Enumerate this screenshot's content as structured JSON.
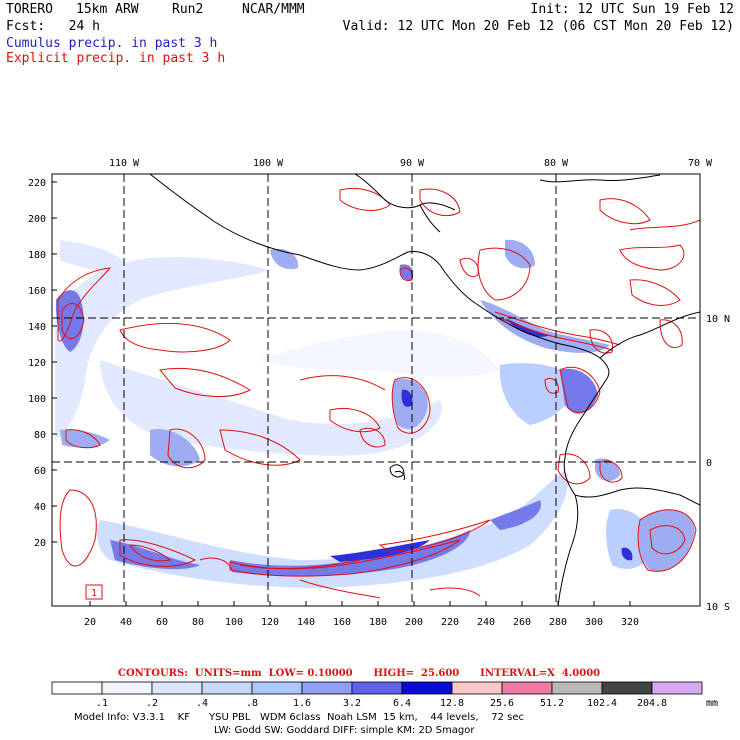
{
  "header": {
    "model": "TORERO",
    "resolution": "15km ARW",
    "run": "Run2",
    "center": "NCAR/MMM",
    "init": "Init: 12 UTC Sun 19 Feb 12",
    "fcst": "Fcst:   24 h",
    "valid": "Valid: 12 UTC Mon 20 Feb 12 (06 CST Mon 20 Feb 12)",
    "cumulus_title": "Cumulus precip. in past 3 h",
    "explicit_title": "Explicit precip. in past 3 h"
  },
  "map": {
    "lon_labels": [
      "110 W",
      "100 W",
      "90 W",
      "80 W",
      "70 W"
    ],
    "lat_labels": [
      "10 N",
      "0",
      "10 S"
    ],
    "y_ticks": [
      "220",
      "200",
      "180",
      "160",
      "140",
      "120",
      "100",
      "80",
      "60",
      "40",
      "20"
    ],
    "x_ticks": [
      "20",
      "40",
      "60",
      "80",
      "100",
      "120",
      "140",
      "160",
      "180",
      "200",
      "220",
      "240",
      "260",
      "280",
      "300",
      "320"
    ],
    "colors": {
      "cumulus": "#3d3df0",
      "explicit": "#e01010",
      "coast": "#000000"
    },
    "box_label": "1"
  },
  "legend": {
    "contours_line": "CONTOURS:  UNITS=mm  LOW= 0.10000      HIGH=  25.600      INTERVAL=X  4.0000",
    "unit": "mm",
    "thresholds": [
      ".1",
      ".2",
      ".4",
      ".8",
      "1.6",
      "3.2",
      "6.4",
      "12.8",
      "25.6",
      "51.2",
      "102.4",
      "204.8"
    ],
    "colors": [
      "#ffffff",
      "#f2f5ff",
      "#dde6ff",
      "#c7d8ff",
      "#aec6ff",
      "#8e9ef0",
      "#5f62e6",
      "#0b0bd6",
      "#f9c9c9",
      "#f07aa6",
      "#b9b9b9",
      "#444444",
      "#d7a8f2"
    ]
  },
  "footer": {
    "line1": "Model Info: V3.3.1    KF      YSU PBL   WDM 6class  Noah LSM  15 km,    44 levels,    72 sec",
    "line2": "LW: Godd SW: Goddard DIFF: simple KM: 2D Smagor"
  }
}
